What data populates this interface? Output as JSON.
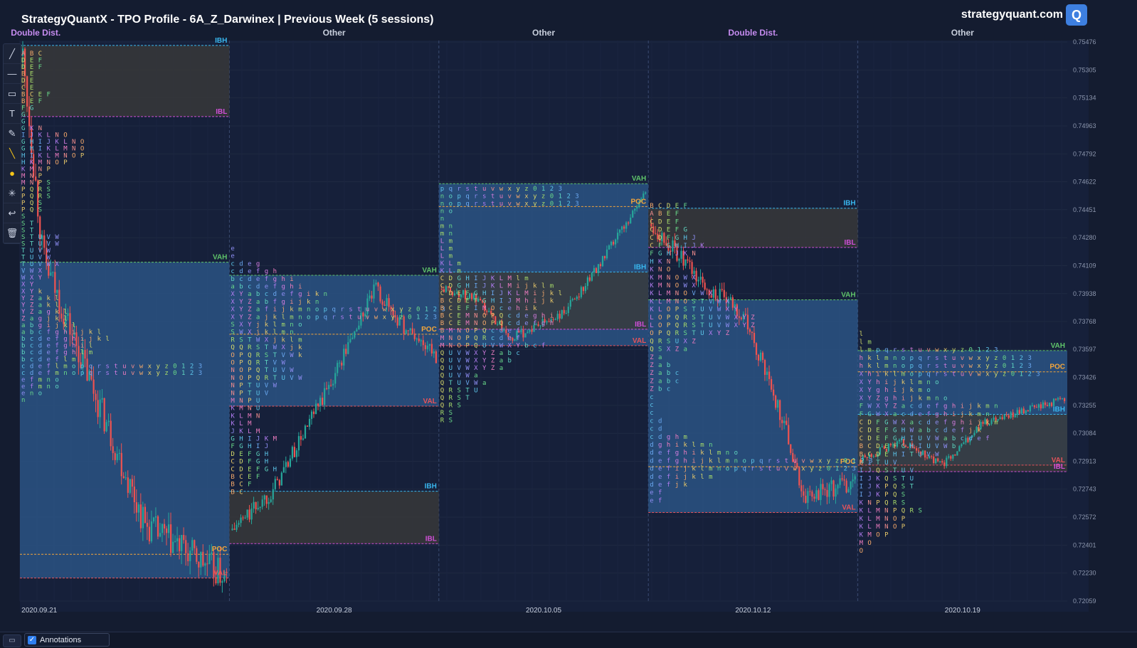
{
  "header": {
    "title": "StrategyQuantX - TPO Profile - 6A_Z_Darwinex | Previous Week (5 sessions)",
    "brand": "strategyquant.com",
    "logo_letter": "Q"
  },
  "toolbar": {
    "tools": [
      {
        "name": "trend-line-tool",
        "glyph": "╱"
      },
      {
        "name": "horizontal-line-tool",
        "glyph": "—"
      },
      {
        "name": "rectangle-tool",
        "glyph": "▭"
      },
      {
        "name": "text-tool",
        "glyph": "T"
      },
      {
        "name": "brush-tool",
        "glyph": "✎"
      },
      {
        "name": "highlighter-tool",
        "glyph": "╲"
      },
      {
        "name": "color-picker-tool",
        "glyph": "●"
      },
      {
        "name": "settings-tool",
        "glyph": "✳"
      },
      {
        "name": "undo-tool",
        "glyph": "↩"
      },
      {
        "name": "delete-tool",
        "glyph": "🗑"
      }
    ]
  },
  "footer": {
    "annotations_label": "Annotations",
    "annotations_checked": true,
    "screen_icon": "▭"
  },
  "chart_data": {
    "type": "tpo_profile",
    "title": "StrategyQuantX - TPO Profile - 6A_Z_Darwinex | Previous Week (5 sessions)",
    "x_tick_labels": [
      "2020.09.21",
      "2020.09.28",
      "2020.10.05",
      "2020.10.12",
      "2020.10.19"
    ],
    "y_ticks": [
      0.75476,
      0.75305,
      0.75134,
      0.74963,
      0.74792,
      0.74622,
      0.74451,
      0.7428,
      0.74109,
      0.73938,
      0.73768,
      0.73597,
      0.73426,
      0.73255,
      0.73084,
      0.72913,
      0.72743,
      0.72572,
      0.72401,
      0.7223,
      0.72059
    ],
    "ylim": [
      0.72059,
      0.75476
    ],
    "colors": {
      "value_area": "#2d5a8e",
      "initial_balance": "#3a3a3a",
      "ibh": "#39b8f0",
      "ibl": "#d04fd8",
      "vah": "#5fc46a",
      "val": "#e8535a",
      "poc": "#f3a53b",
      "up_candle": "#26a69a",
      "down_candle": "#ef5350",
      "grid": "#1f2a42"
    },
    "sessions": [
      {
        "date": "2020.09.21",
        "type": "Double Dist.",
        "ibh": 0.75455,
        "ibl": 0.7502,
        "vah": 0.7413,
        "val": 0.722,
        "poc": 0.72345,
        "tpo": [
          [
            "A B C",
            "D E F"
          ],
          [
            "D E F",
            "B E"
          ],
          [
            "D E"
          ],
          [
            "C E",
            "B C E F"
          ],
          [
            "B E F"
          ],
          [
            "F G",
            "G",
            "G"
          ],
          [
            "G K N",
            "I J K L N O",
            "G H I J K L N O",
            "G H I K L M N O",
            "H I K L M N O P",
            "H K M N O P"
          ],
          [
            "K M N P",
            "M N P",
            "M N P S"
          ],
          [
            "P Q R S",
            "P Q R S",
            "P Q S",
            "P Q S"
          ],
          [
            "S",
            "S T",
            "S T",
            "S T U V W",
            "S T U V W",
            "T U V W",
            "T U V W",
            "T U V W X"
          ],
          [
            "V W X",
            "W X Y",
            "X Y",
            "X Y k"
          ],
          [
            "Y Z a k l",
            "Y Z a k l",
            "Y Z a g k l",
            "Z a g j k l",
            "a b g i j k l"
          ],
          [
            "a b c f g h i j k l",
            "b c d e f g h i j k l",
            "b c d e f g h i l",
            "b c d e f g h l m",
            "b c d e f l m"
          ],
          [
            "c d e f l m o p q r s t u v w x y z 0 1 2 3",
            "c d e f m n o p q r s t u v w x y z 0 1 2 3",
            "e f m n o",
            "e f m n o",
            "e n o",
            "n"
          ]
        ]
      },
      {
        "date": "2020.09.28",
        "type": "Other",
        "ibh": 0.7273,
        "ibl": 0.7241,
        "vah": 0.7405,
        "val": 0.7325,
        "poc": 0.7369,
        "tpo": [
          [
            "e",
            "e",
            "c d e g",
            "c d e f g h",
            "b c d e f g h i",
            "a b c d e f g h i"
          ],
          [
            "X Y a b c d e f g i k n",
            "X Y Z a b f g i j k n",
            "X Y Z a f i j k m n o p q r s t u v w x y z 0 1 2 3",
            "X Y Z a j k l m n o p q r s t u v w x y z 0 1 2 3",
            "S X Y j k l m n o",
            "S W X j k l m n"
          ],
          [
            "R S T W X j k l m",
            "Q Q R S T W X j k",
            "O P Q R S T V W k",
            "O P Q R T V W",
            "N O P Q T U V W",
            "N O P Q R T U V W"
          ],
          [
            "N P T U V W",
            "N P T U V",
            "M N P U",
            "K M N U",
            "K L M N",
            "K L M",
            "J K L M"
          ],
          [
            "G H I J K M",
            "F G H I J",
            "D E F G H",
            "C D F G H",
            "C D E F G H",
            "B C E F",
            "B C F",
            "B C"
          ]
        ]
      },
      {
        "date": "2020.10.05",
        "type": "Other",
        "ibh": 0.7407,
        "ibl": 0.7372,
        "vah": 0.7461,
        "val": 0.7362,
        "poc": 0.7447,
        "tpo": [
          [
            "p q r s t u v w x y z 0 1 2 3",
            "n o p q r s t u v w x y z 0 1 2 3",
            "n o p q r s t u v w x y z 0 1 2 3",
            "n o",
            "n",
            "m n",
            "m n"
          ],
          [
            "L m",
            "L m",
            "L m",
            "K L m",
            "K L m"
          ],
          [
            "C D G H I J K L M l m",
            "C D G H I J K L M i j k l m",
            "C D E F G H I J K L M i j k l",
            "B C D E F G H I J M h i j k",
            "B C E F I M O c e h i k",
            "B C E M N O P Q c d e g h i"
          ],
          [
            "B C E M N O P Q c d e f g h",
            "B M N O P Q c d e f",
            "M N O P Q R c d e f",
            "M N O P Q U V W X Y b c f",
            "Q U V W X Y Z a b c",
            "Q U V W X Y Z a b"
          ],
          [
            "Q U V W X Y Z a",
            "Q U V W a",
            "Q T U V W a",
            "Q R S T U",
            "Q R S T",
            "Q R S",
            "R S",
            "R S"
          ]
        ]
      },
      {
        "date": "2020.10.12",
        "type": "Double Dist.",
        "ibh": 0.7446,
        "ibl": 0.7422,
        "vah": 0.739,
        "val": 0.726,
        "poc": 0.7288,
        "tpo": [
          [
            "B C D E F",
            "A B E F",
            "C D E F",
            "C D E F G",
            "C D F G H J",
            "C F G H I J K",
            "F G H J K N"
          ],
          [
            "H K N",
            "K N O",
            "K M N O W X",
            "K M N O W X",
            "K L M N O V W X",
            "K L M N O S T V W X"
          ],
          [
            "K L O P S T U V W X Y",
            "L O P Q R S T U V W X Y Z",
            "L O P Q R S T U V W X Y Z",
            "O P Q R S T U X Y Z",
            "Q R S U X Z",
            "Q S X Z a"
          ],
          [
            "Z a",
            "Z a b",
            "Z a b c",
            "Z a b c",
            "Z b c"
          ],
          [
            "c",
            "c",
            "c",
            "c d",
            "c d",
            "c d g h m"
          ],
          [
            "d g h i k l m n",
            "d e f g h i k l m n o",
            "d e f g h i j k l m n o p q r s t u v w x y z 0 1 2 3",
            "d e f i j k l m n o p q r s t u v w x y z 0 1 2 3",
            "d e f i j k l m",
            "d e f j k",
            "e f",
            "e f"
          ]
        ]
      },
      {
        "date": "2020.10.19",
        "type": "Other",
        "ibh": 0.732,
        "ibl": 0.7285,
        "vah": 0.7359,
        "val": 0.7289,
        "poc": 0.7346,
        "tpo": [
          [
            "l",
            "l m",
            "l m p q r s t u v w x y z 0 1 2 3",
            "h k l m n o p q r s t u v w x y z 0 1 2 3",
            "h k l m n o p q r s t u v w x y z 0 1 2 3",
            "X h i k l m o p q r s t u v w x y z 0 1 2 3",
            "X Y h i j k l m n o",
            "X Y g h i j k m o",
            "X Y Z g h i j k m n o"
          ],
          [
            "F W X Y Z a c d e f g h i j k m n",
            "F G W X a c d e f g h i j k m n",
            "C D F G W X a c d e f g h i j k m",
            "C D E F G H W a b c d e f j k",
            "C D E F G H I U V W a b c d e f",
            "B C D E F G H I U V W b"
          ],
          [
            "B C D E H I T U V W",
            "B I T U V",
            "I J Q S T U V",
            "I J K Q S T U",
            "I J K P Q S T",
            "I J K P Q S",
            "K N P Q R S",
            "K L M N P Q R S",
            "K L M N O P",
            "K L M N O P",
            "K M O P",
            "M O",
            "O"
          ]
        ]
      }
    ]
  }
}
